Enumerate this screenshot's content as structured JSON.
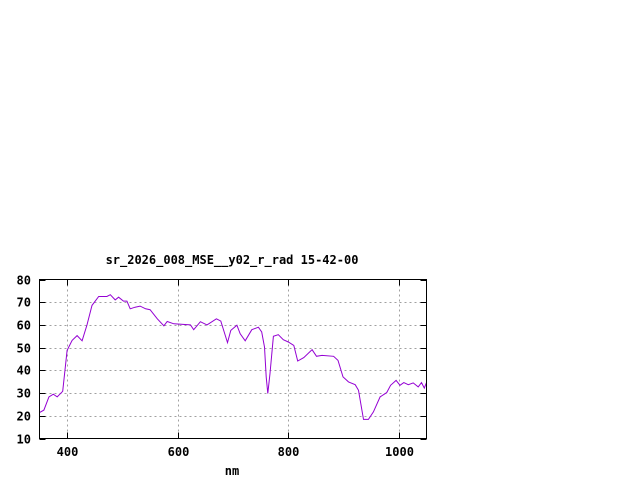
{
  "chart_data": {
    "type": "line",
    "title": "sr_2026_008_MSE__y02_r_rad 15-42-00",
    "xlabel": "nm",
    "ylabel": "",
    "xlim": [
      350,
      1050
    ],
    "ylim": [
      10,
      80
    ],
    "xticks": [
      400,
      600,
      800,
      1000
    ],
    "yticks": [
      10,
      20,
      30,
      40,
      50,
      60,
      70,
      80
    ],
    "grid": true,
    "line_color": "#9400d3",
    "series": [
      {
        "x": [
          350,
          358,
          367,
          375,
          382,
          392,
          400,
          409,
          418,
          427,
          436,
          445,
          457,
          472,
          478,
          487,
          493,
          502,
          508,
          514,
          523,
          532,
          542,
          550,
          563,
          575,
          581,
          593,
          623,
          629,
          641,
          653,
          670,
          678,
          684,
          690,
          696,
          707,
          713,
          722,
          734,
          746,
          752,
          757,
          760,
          763,
          767,
          773,
          782,
          791,
          800,
          810,
          817,
          828,
          843,
          851,
          861,
          882,
          890,
          899,
          909,
          921,
          927,
          936,
          945,
          954,
          966,
          978,
          985,
          995,
          1002,
          1009,
          1017,
          1026,
          1035,
          1041,
          1046,
          1050
        ],
        "y": [
          21.4,
          22.5,
          28.3,
          29.5,
          28.3,
          30.8,
          48.8,
          53.2,
          55.3,
          53,
          60,
          68.6,
          72.5,
          72.5,
          73.3,
          71,
          72.2,
          70.5,
          70.5,
          67.1,
          67.8,
          68.3,
          67.1,
          66.7,
          62.7,
          59.6,
          61.5,
          60.5,
          60,
          57.9,
          61.4,
          60,
          62.7,
          61.7,
          56.9,
          52.2,
          57.6,
          59.9,
          56.1,
          53,
          57.9,
          59,
          56.9,
          50.3,
          37.1,
          29.8,
          38.6,
          55,
          55.7,
          53.5,
          52.5,
          51,
          44.1,
          45.6,
          49.1,
          46.2,
          46.6,
          46.2,
          44.4,
          37.1,
          34.9,
          33.7,
          31.2,
          18.4,
          18.4,
          21.7,
          28.3,
          30.2,
          33.4,
          35.6,
          33.4,
          34.6,
          33.7,
          34.5,
          32.7,
          34.6,
          32.2,
          34.6
        ]
      }
    ]
  }
}
